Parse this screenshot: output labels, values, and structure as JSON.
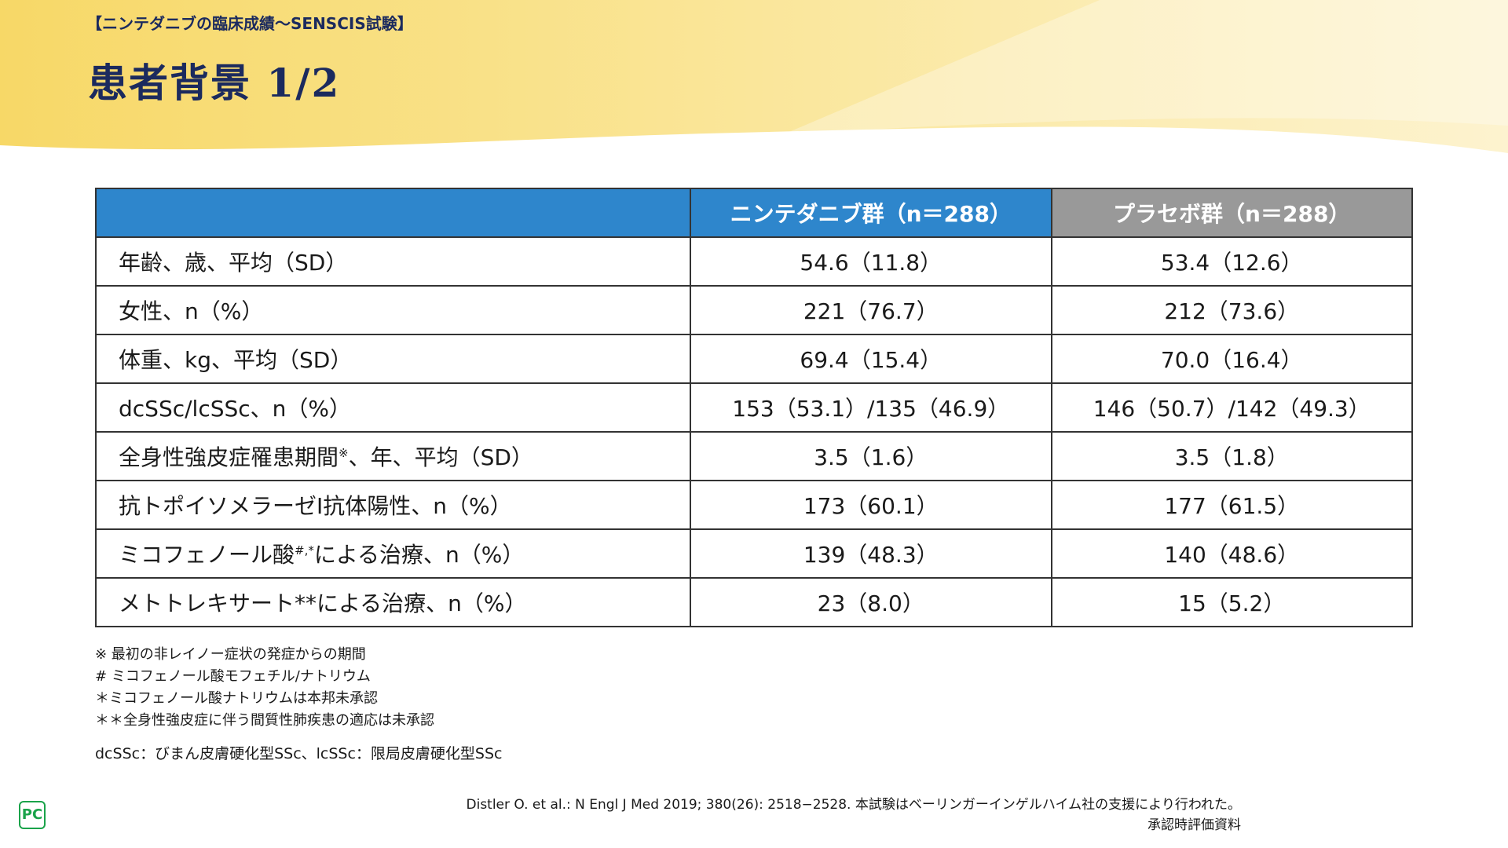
{
  "header": {
    "subtitle": "【ニンテダニブの臨床成績～SENSCIS試験】",
    "title": "患者背景 1/2"
  },
  "colors": {
    "nintedanib_header": "#2e86cc",
    "placebo_header": "#999999",
    "title": "#1b2a5e"
  },
  "table": {
    "columns": [
      "",
      "ニンテダニブ群（n＝288）",
      "プラセボ群（n＝288）"
    ],
    "rows": [
      {
        "label": "年齢、歳、平均（SD）",
        "sup": "",
        "rest": "",
        "nintedanib": "54.6（11.8）",
        "placebo": "53.4（12.6）"
      },
      {
        "label": "女性、n（%）",
        "sup": "",
        "rest": "",
        "nintedanib": "221（76.7）",
        "placebo": "212（73.6）"
      },
      {
        "label": "体重、kg、平均（SD）",
        "sup": "",
        "rest": "",
        "nintedanib": "69.4（15.4）",
        "placebo": "70.0（16.4）"
      },
      {
        "label": "dcSSc/lcSSc、n（%）",
        "sup": "",
        "rest": "",
        "nintedanib": "153（53.1）/135（46.9）",
        "placebo": "146（50.7）/142（49.3）"
      },
      {
        "label": "全身性強皮症罹患期間",
        "sup": "※",
        "rest": "、年、平均（SD）",
        "nintedanib": "3.5（1.6）",
        "placebo": "3.5（1.8）"
      },
      {
        "label": "抗トポイソメラーゼⅠ抗体陽性、n（%）",
        "sup": "",
        "rest": "",
        "nintedanib": "173（60.1）",
        "placebo": "177（61.5）"
      },
      {
        "label": "ミコフェノール酸",
        "sup": "#,*",
        "rest": "による治療、n（%）",
        "nintedanib": "139（48.3）",
        "placebo": "140（48.6）"
      },
      {
        "label": "メトトレキサート**による治療、n（%）",
        "sup": "",
        "rest": "",
        "nintedanib": "23（8.0）",
        "placebo": "15（5.2）"
      }
    ]
  },
  "footnotes": [
    "※ 最初の非レイノー症状の発症からの期間",
    "# ミコフェノール酸モフェチル/ナトリウム",
    "＊ミコフェノール酸ナトリウムは本邦未承認",
    "＊＊全身性強皮症に伴う間質性肺疾患の適応は未承認"
  ],
  "abbreviations": "dcSSc：びまん皮膚硬化型SSc、lcSSc：限局皮膚硬化型SSc",
  "citation": "Distler O. et al.: N Engl J Med 2019; 380(26): 2518−2528. 本試験はベーリンガーインゲルハイム社の支援により行われた。",
  "approval": "承認時評価資料",
  "logo": {
    "text": "PC",
    "icon": "pc-logo-icon"
  }
}
